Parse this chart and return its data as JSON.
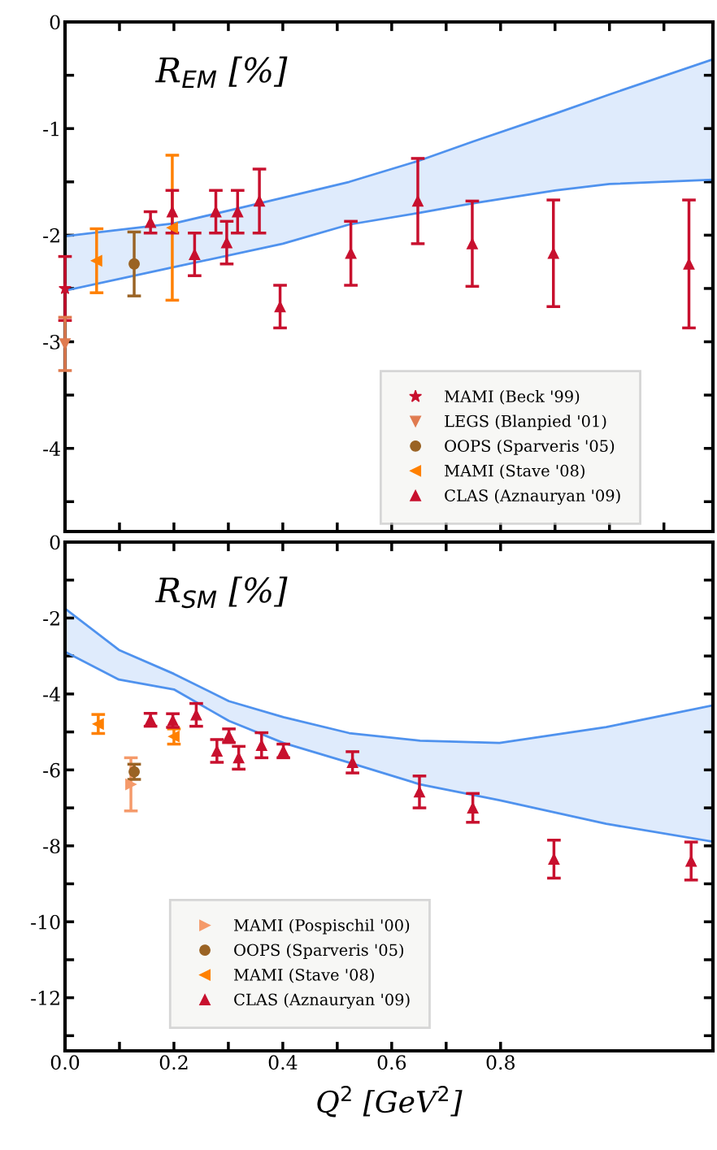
{
  "chart_data": [
    {
      "type": "scatter",
      "title": "R$_{EM}$ [%]",
      "xlim": [
        0,
        1.19
      ],
      "ylim": [
        -4.78,
        0
      ],
      "xticks": [
        {
          "value": 0,
          "label": null
        },
        {
          "value": 0.1,
          "label": null
        },
        {
          "value": 0.2,
          "label": null
        },
        {
          "value": 0.3,
          "label": null
        },
        {
          "value": 0.4,
          "label": null
        },
        {
          "value": 0.5,
          "label": null
        },
        {
          "value": 0.6,
          "label": null
        },
        {
          "value": 0.7,
          "label": null
        },
        {
          "value": 0.8,
          "label": null
        },
        {
          "value": 0.9,
          "label": null
        },
        {
          "value": 1.0,
          "label": null
        },
        {
          "value": 1.1,
          "label": null
        }
      ],
      "yticks": [
        0,
        {
          "value": -0.5,
          "label": null
        },
        -1,
        {
          "value": -1.5,
          "label": null
        },
        -2,
        {
          "value": -2.5,
          "label": null
        },
        -3,
        {
          "value": -3.5,
          "label": null
        },
        -4,
        {
          "value": -4.5,
          "label": null
        }
      ],
      "tick_labels": "y",
      "grid": false,
      "legend": "bottom right",
      "series": [
        {
          "type": "line",
          "color": "#4f92ee",
          "x": [
            0,
            0.2,
            0.4,
            0.522,
            0.651,
            0.75,
            0.9,
            1.0,
            1.19
          ],
          "values": [
            -2.52,
            -2.3,
            -2.08,
            -1.9,
            -1.79,
            -1.7,
            -1.58,
            -1.52,
            -1.48
          ]
        },
        {
          "type": "line",
          "color": "#4f92ee",
          "x": [
            0,
            0.2,
            0.4,
            0.522,
            0.651,
            0.75,
            0.9,
            1.0,
            1.19
          ],
          "values": [
            -2.01,
            -1.89,
            -1.65,
            -1.5,
            -1.3,
            -1.12,
            -0.86,
            -0.68,
            -0.35
          ],
          "lower": [
            -2.52,
            -2.3,
            -2.08,
            -1.9,
            -1.79,
            -1.7,
            -1.58,
            -1.52,
            -1.48
          ],
          "upper": [
            -2.01,
            -1.89,
            -1.65,
            -1.5,
            -1.3,
            -1.12,
            -0.86,
            -0.68,
            -0.35
          ]
        },
        {
          "name": "MAMI (Beck '99)",
          "color": "#c8102e",
          "marker": "star",
          "x": [
            0
          ],
          "values": [
            -2.5
          ],
          "errors": [
            0.3
          ]
        },
        {
          "name": "LEGS (Blanpied '01)",
          "color": "#e07b50",
          "marker": "triangle_down",
          "x": [
            0
          ],
          "values": [
            -3.02
          ],
          "errors": [
            0.25
          ]
        },
        {
          "name": "OOPS (Sparveris '05)",
          "color": "#9a6324",
          "marker": "circle",
          "x": [
            0.127
          ],
          "values": [
            -2.27
          ],
          "errors": [
            0.3
          ]
        },
        {
          "name": "MAMI (Stave '08)",
          "color": "#ff8000",
          "marker": "triangle_left",
          "x": [
            0.058,
            0.197
          ],
          "values": [
            -2.24,
            -1.93
          ],
          "errors": [
            0.3,
            0.68
          ]
        },
        {
          "name": "CLAS (Aznauryan '09)",
          "color": "#c8102e",
          "marker": "triangle",
          "x": [
            0.157,
            0.197,
            0.238,
            0.277,
            0.297,
            0.317,
            0.357,
            0.395,
            0.525,
            0.648,
            0.748,
            0.897,
            1.146
          ],
          "values": [
            -1.88,
            -1.78,
            -2.18,
            -1.78,
            -2.07,
            -1.78,
            -1.68,
            -2.67,
            -2.17,
            -1.68,
            -2.08,
            -2.17,
            -2.27
          ],
          "errors": [
            0.1,
            0.2,
            0.2,
            0.2,
            0.2,
            0.2,
            0.3,
            0.2,
            0.3,
            0.4,
            0.4,
            0.5,
            0.6
          ]
        }
      ]
    },
    {
      "type": "scatter",
      "title": "R$_{SM}$ [%]",
      "xlabel": "Q$^{2}$ [GeV$^{2}$]",
      "xlim": [
        0,
        1.19
      ],
      "ylim": [
        -13.4,
        0
      ],
      "xticks": [
        {
          "value": 0,
          "label": "0.0"
        },
        {
          "value": 0.1,
          "label": null
        },
        {
          "value": 0.2,
          "label": "0.2"
        },
        {
          "value": 0.3,
          "label": null
        },
        {
          "value": 0.4,
          "label": "0.4"
        },
        {
          "value": 0.5,
          "label": null
        },
        {
          "value": 0.6,
          "label": "0.6"
        },
        {
          "value": 0.7,
          "label": null
        },
        {
          "value": 0.8,
          "label": "0.8"
        }
      ],
      "yticks": [
        0,
        {
          "value": -1,
          "label": null
        },
        -2,
        {
          "value": -3,
          "label": null
        },
        -4,
        {
          "value": -5,
          "label": null
        },
        -6,
        {
          "value": -7,
          "label": null
        },
        -8,
        {
          "value": -9,
          "label": null
        },
        -10,
        {
          "value": -11,
          "label": null
        },
        -12,
        {
          "value": -13,
          "label": null
        }
      ],
      "grid": false,
      "legend": "bottom left",
      "series": [
        {
          "type": "line",
          "color": "#4f92ee",
          "x": [
            0,
            0.099,
            0.2,
            0.301,
            0.401,
            0.522,
            0.652,
            0.798,
            0.994,
            1.19
          ],
          "values": [
            -2.89,
            -3.62,
            -3.88,
            -4.71,
            -5.29,
            -5.81,
            -6.38,
            -6.8,
            -7.42,
            -7.89
          ]
        },
        {
          "type": "line",
          "color": "#4f92ee",
          "x": [
            0,
            0.099,
            0.2,
            0.301,
            0.401,
            0.522,
            0.652,
            0.798,
            0.994,
            1.19
          ],
          "values": [
            -1.75,
            -2.84,
            -3.47,
            -4.19,
            -4.61,
            -5.03,
            -5.23,
            -5.29,
            -4.87,
            -4.3
          ],
          "lower": [
            -2.89,
            -3.62,
            -3.88,
            -4.71,
            -5.29,
            -5.81,
            -6.38,
            -6.8,
            -7.42,
            -7.89
          ],
          "upper": [
            -1.75,
            -2.84,
            -3.47,
            -4.19,
            -4.61,
            -5.03,
            -5.23,
            -5.29,
            -4.87,
            -4.3
          ]
        },
        {
          "name": "MAMI (Pospischil '00)",
          "color": "#f59a6a",
          "marker": "triangle_right",
          "x": [
            0.121
          ],
          "values": [
            -6.38
          ],
          "errors": [
            0.7
          ]
        },
        {
          "name": "OOPS (Sparveris '05)",
          "color": "#9a6324",
          "marker": "circle",
          "x": [
            0.127
          ],
          "values": [
            -6.05
          ],
          "errors": [
            0.2
          ]
        },
        {
          "name": "MAMI (Stave '08)",
          "color": "#ff8000",
          "marker": "triangle_left",
          "x": [
            0.061,
            0.2
          ],
          "values": [
            -4.79,
            -5.12
          ],
          "errors": [
            0.25,
            0.2
          ]
        },
        {
          "name": "CLAS (Aznauryan '09)",
          "color": "#c8102e",
          "marker": "triangle",
          "x": [
            0.157,
            0.198,
            0.241,
            0.279,
            0.301,
            0.319,
            0.361,
            0.401,
            0.528,
            0.651,
            0.749,
            0.898,
            1.15
          ],
          "values": [
            -4.68,
            -4.7,
            -4.55,
            -5.5,
            -5.1,
            -5.68,
            -5.35,
            -5.5,
            -5.8,
            -6.58,
            -7.0,
            -8.35,
            -8.4
          ],
          "errors": [
            0.17,
            0.18,
            0.3,
            0.3,
            0.18,
            0.3,
            0.33,
            0.18,
            0.28,
            0.42,
            0.38,
            0.5,
            0.5
          ]
        }
      ]
    }
  ]
}
